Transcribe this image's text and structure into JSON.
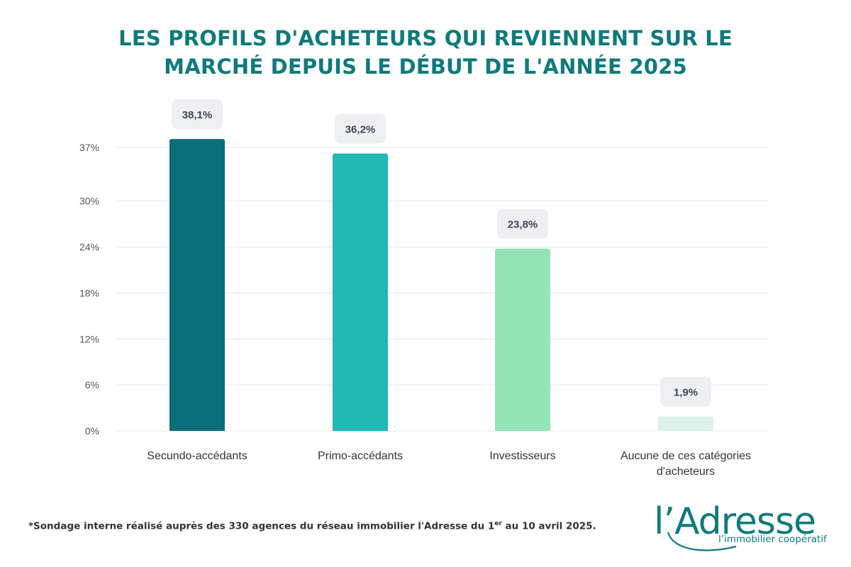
{
  "title": {
    "line1": "LES PROFILS D'ACHETEURS QUI REVIENNENT SUR LE",
    "line2": "MARCHÉ DEPUIS LE DÉBUT DE L'ANNÉE 2025"
  },
  "chart_data": {
    "type": "bar",
    "categories": [
      [
        "Secundo-accédants"
      ],
      [
        "Primo-accédants"
      ],
      [
        "Investisseurs"
      ],
      [
        "Aucune de ces catégories",
        "d'acheteurs"
      ]
    ],
    "values": [
      38.1,
      36.2,
      23.8,
      1.9
    ],
    "value_labels": [
      "38,1%",
      "36,2%",
      "23,8%",
      "1,9%"
    ],
    "bar_colors": [
      "#0b6e7a",
      "#22b8b3",
      "#93e3b7",
      "#dcf1e8"
    ],
    "y_ticks": [
      0,
      6,
      12,
      18,
      24,
      30,
      37
    ],
    "y_tick_labels": [
      "0%",
      "6%",
      "12%",
      "18%",
      "24%",
      "30%",
      "37%"
    ],
    "ylim": [
      0,
      37
    ],
    "grid": true,
    "legend": "none"
  },
  "footnote": {
    "before": "*Sondage interne réalisé auprès des 330 agences du réseau immobilier l'Adresse du 1",
    "sup": "er",
    "after": " au 10 avril 2025."
  },
  "logo": {
    "name": "l'Adresse",
    "tagline": "l'immobilier coopératif",
    "color": "#0f7a7c"
  },
  "colors": {
    "title": "#0f7a7c",
    "grid": "#e8e8ee",
    "axis_text": "#555555",
    "label_box": "#eeeff3",
    "label_text": "#444455"
  }
}
